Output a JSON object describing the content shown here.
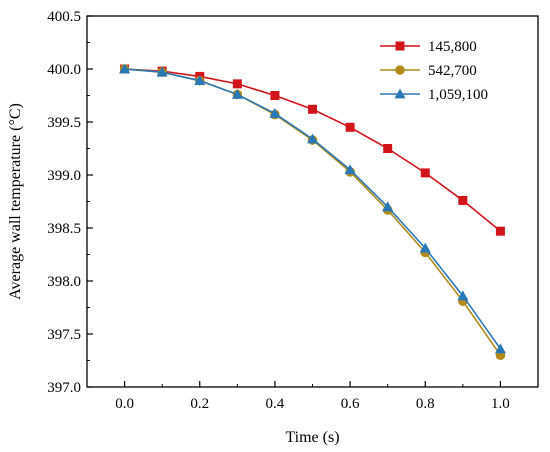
{
  "chart_data": {
    "type": "line",
    "xlabel": "Time (s)",
    "ylabel": "Average wall temperature (°C)",
    "xlim": [
      -0.1,
      1.1
    ],
    "ylim": [
      397.0,
      400.5
    ],
    "xticks": [
      0.0,
      0.2,
      0.4,
      0.6,
      0.8,
      1.0
    ],
    "xtick_labels": [
      "0.0",
      "0.2",
      "0.4",
      "0.6",
      "0.8",
      "1.0"
    ],
    "yticks": [
      397.0,
      397.5,
      398.0,
      398.5,
      399.0,
      399.5,
      400.0,
      400.5
    ],
    "ytick_labels": [
      "397.0",
      "397.5",
      "398.0",
      "398.5",
      "399.0",
      "399.5",
      "400.0",
      "400.5"
    ],
    "grid": false,
    "legend_position": "top-right",
    "x": [
      0.0,
      0.1,
      0.2,
      0.3,
      0.4,
      0.5,
      0.6,
      0.7,
      0.8,
      0.9,
      1.0
    ],
    "series": [
      {
        "name": "145,800",
        "marker": "square",
        "color": "#d2141b",
        "values": [
          400.0,
          399.98,
          399.93,
          399.86,
          399.75,
          399.62,
          399.45,
          399.25,
          399.02,
          398.76,
          398.47
        ]
      },
      {
        "name": "542,700",
        "marker": "circle",
        "color": "#b08a1c",
        "values": [
          400.0,
          399.97,
          399.89,
          399.76,
          399.57,
          399.33,
          399.03,
          398.67,
          398.27,
          397.81,
          397.3
        ]
      },
      {
        "name": "1,059,100",
        "marker": "triangle",
        "color": "#2a78b5",
        "values": [
          400.0,
          399.97,
          399.89,
          399.76,
          399.58,
          399.34,
          399.05,
          398.7,
          398.31,
          397.86,
          397.36
        ]
      }
    ]
  }
}
